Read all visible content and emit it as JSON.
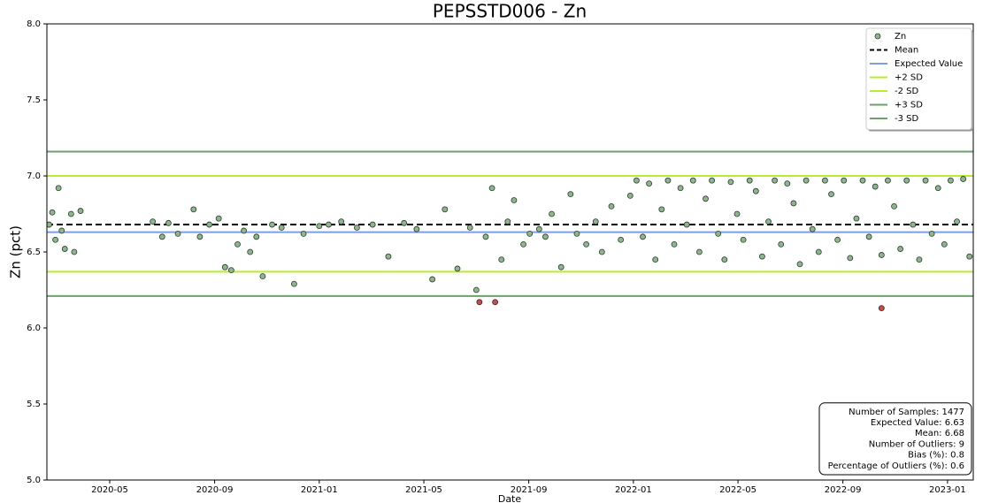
{
  "chart_data": {
    "type": "scatter",
    "title": "PEPSSTD006 - Zn",
    "xlabel": "Date",
    "ylabel": "Zn (pct)",
    "xlim": [
      2020.133,
      2023.082
    ],
    "ylim": [
      5.0,
      8.0
    ],
    "xticks": [
      {
        "value": 2020.333,
        "label": "2020-05"
      },
      {
        "value": 2020.667,
        "label": "2020-09"
      },
      {
        "value": 2021.0,
        "label": "2021-01"
      },
      {
        "value": 2021.333,
        "label": "2021-05"
      },
      {
        "value": 2021.667,
        "label": "2021-09"
      },
      {
        "value": 2022.0,
        "label": "2022-01"
      },
      {
        "value": 2022.333,
        "label": "2022-05"
      },
      {
        "value": 2022.667,
        "label": "2022-09"
      },
      {
        "value": 2023.0,
        "label": "2023-01"
      }
    ],
    "yticks": [
      {
        "value": 5,
        "label": "5.0"
      },
      5.5,
      {
        "value": 6,
        "label": "6.0"
      },
      6.5,
      {
        "value": 7,
        "label": "7.0"
      },
      7.5,
      {
        "value": 8,
        "label": "8.0"
      }
    ],
    "grid": false,
    "legend": "upper right",
    "series": [
      {
        "name": "Zn",
        "color": "#8fb58f",
        "x": [
          2020.14,
          2020.15,
          2020.16,
          2020.17,
          2020.18,
          2020.19,
          2020.21,
          2020.22,
          2020.24,
          2020.47,
          2020.5,
          2020.52,
          2020.55,
          2020.6,
          2020.62,
          2020.65,
          2020.68,
          2020.7,
          2020.72,
          2020.74,
          2020.76,
          2020.78,
          2020.8,
          2020.82,
          2020.85,
          2020.88,
          2020.92,
          2020.95,
          2021.0,
          2021.03,
          2021.07,
          2021.12,
          2021.17,
          2021.22,
          2021.27,
          2021.31,
          2021.36,
          2021.4,
          2021.44,
          2021.48,
          2021.5,
          2021.53,
          2021.55,
          2021.58,
          2021.6,
          2021.62,
          2021.65,
          2021.67,
          2021.7,
          2021.72,
          2021.74,
          2021.77,
          2021.8,
          2021.82,
          2021.85,
          2021.88,
          2021.9,
          2021.93,
          2021.96,
          2021.99,
          2022.01,
          2022.03,
          2022.05,
          2022.07,
          2022.09,
          2022.11,
          2022.13,
          2022.15,
          2022.17,
          2022.19,
          2022.21,
          2022.23,
          2022.25,
          2022.27,
          2022.29,
          2022.31,
          2022.33,
          2022.35,
          2022.37,
          2022.39,
          2022.41,
          2022.43,
          2022.45,
          2022.47,
          2022.49,
          2022.51,
          2022.53,
          2022.55,
          2022.57,
          2022.59,
          2022.61,
          2022.63,
          2022.65,
          2022.67,
          2022.69,
          2022.71,
          2022.73,
          2022.75,
          2022.77,
          2022.79,
          2022.81,
          2022.83,
          2022.85,
          2022.87,
          2022.89,
          2022.91,
          2022.93,
          2022.95,
          2022.97,
          2022.99,
          2023.01,
          2023.03,
          2023.05,
          2023.07
        ],
        "values": [
          6.68,
          6.76,
          6.58,
          6.92,
          6.64,
          6.52,
          6.75,
          6.5,
          6.77,
          6.7,
          6.6,
          6.69,
          6.62,
          6.78,
          6.6,
          6.68,
          6.72,
          6.4,
          6.38,
          6.55,
          6.64,
          6.5,
          6.6,
          6.34,
          6.68,
          6.66,
          6.29,
          6.62,
          6.67,
          6.68,
          6.7,
          6.66,
          6.68,
          6.47,
          6.69,
          6.65,
          6.32,
          6.78,
          6.39,
          6.66,
          6.25,
          6.6,
          6.92,
          6.45,
          6.7,
          6.84,
          6.55,
          6.62,
          6.65,
          6.6,
          6.75,
          6.4,
          6.88,
          6.62,
          6.55,
          6.7,
          6.5,
          6.8,
          6.58,
          6.87,
          6.97,
          6.6,
          6.95,
          6.45,
          6.78,
          6.97,
          6.55,
          6.92,
          6.68,
          6.97,
          6.5,
          6.85,
          6.97,
          6.62,
          6.45,
          6.96,
          6.75,
          6.58,
          6.97,
          6.9,
          6.47,
          6.7,
          6.97,
          6.55,
          6.95,
          6.82,
          6.42,
          6.97,
          6.65,
          6.5,
          6.97,
          6.88,
          6.58,
          6.97,
          6.46,
          6.72,
          6.97,
          6.6,
          6.93,
          6.48,
          6.97,
          6.8,
          6.52,
          6.97,
          6.68,
          6.45,
          6.97,
          6.62,
          6.92,
          6.55,
          6.97,
          6.7,
          6.98,
          6.47
        ]
      }
    ],
    "outliers": {
      "color": "#c0504d",
      "x": [
        2021.51,
        2021.56,
        2022.79
      ],
      "values": [
        6.17,
        6.17,
        6.13
      ]
    },
    "lines": [
      {
        "name": "Mean",
        "value": 6.68,
        "color": "#000000",
        "style": "dashed"
      },
      {
        "name": "Expected Value",
        "value": 6.63,
        "color": "#7b9fe6",
        "style": "solid"
      },
      {
        "name": "+2 SD",
        "value": 7.0,
        "color": "#b8ec30",
        "style": "solid"
      },
      {
        "name": "-2 SD",
        "value": 6.37,
        "color": "#b8ec30",
        "style": "solid"
      },
      {
        "name": "+3 SD",
        "value": 7.16,
        "color": "#6d9f6d",
        "style": "solid"
      },
      {
        "name": "-3 SD",
        "value": 6.21,
        "color": "#6d9f6d",
        "style": "solid"
      }
    ],
    "stats": [
      "Number of Samples: 1477",
      "Expected Value: 6.63",
      "Mean: 6.68",
      "Number of Outliers: 9",
      "Bias (%): 0.8",
      "Percentage of Outliers (%): 0.6"
    ]
  }
}
